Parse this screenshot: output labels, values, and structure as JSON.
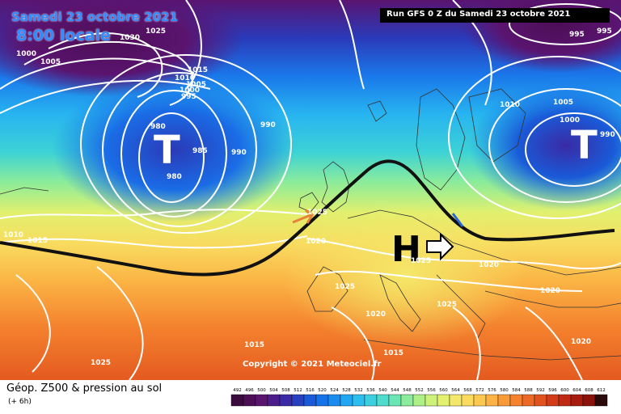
{
  "header": {
    "date": "Samedi 23 octobre 2021",
    "time": "8:00 locale",
    "run": "Run GFS 0 Z du Samedi 23 octobre 2021"
  },
  "footer": {
    "copyright": "Copyright © 2021 Meteociel.fr",
    "title": "Géop. Z500 & pression au sol",
    "subtitle": "(+ 6h)"
  },
  "systems": {
    "low_west": "T",
    "low_east": "T",
    "high": "H"
  },
  "isobars": [
    "1000",
    "1005",
    "1030",
    "1025",
    "1015",
    "1010",
    "1005",
    "1000",
    "995",
    "980",
    "985",
    "990",
    "990",
    "980",
    "1010",
    "1005",
    "1000",
    "990",
    "995",
    "995",
    "1010",
    "1015",
    "1025",
    "1020",
    "1025",
    "1020",
    "1025",
    "1020",
    "1025",
    "1020",
    "1015",
    "1025",
    "1020",
    "1015"
  ],
  "scale": {
    "values": [
      "492",
      "496",
      "500",
      "504",
      "508",
      "512",
      "516",
      "520",
      "524",
      "528",
      "532",
      "536",
      "540",
      "544",
      "548",
      "552",
      "556",
      "560",
      "564",
      "568",
      "572",
      "576",
      "580",
      "584",
      "588",
      "592",
      "596",
      "600",
      "604",
      "608",
      "612"
    ],
    "colors": [
      "#3b0a3f",
      "#4d0e55",
      "#5a1470",
      "#4b1d8a",
      "#3a2aa5",
      "#2840c0",
      "#1a5ad8",
      "#1672e8",
      "#1a8cf0",
      "#22a6f2",
      "#2dbdee",
      "#3ccfe0",
      "#4fdccc",
      "#6ae6b4",
      "#8aec9c",
      "#aef088",
      "#ccf27a",
      "#e4f070",
      "#f4e86a",
      "#fadb60",
      "#fcc850",
      "#fcb244",
      "#f99a38",
      "#f4822e",
      "#ec6a26",
      "#e0521e",
      "#d23c18",
      "#c02a14",
      "#a81c10",
      "#8c120c",
      "#2a0a0a"
    ]
  },
  "colors": {
    "accent_title": "#2f8cff",
    "front": "#111111",
    "contour": "#ffffff"
  }
}
